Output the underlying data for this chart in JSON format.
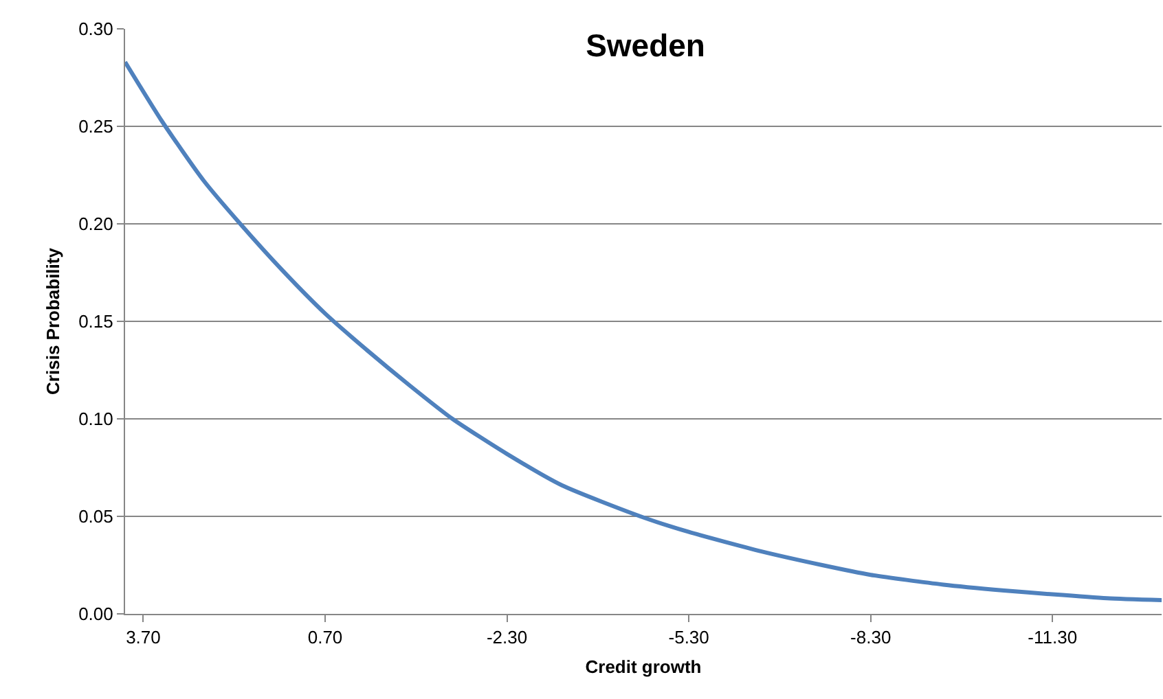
{
  "chart_data": {
    "type": "line",
    "title": "Sweden",
    "xlabel": "Credit growth",
    "ylabel": "Crisis Probability",
    "x": [
      4.0,
      3.4,
      2.7,
      2.1,
      1.4,
      0.7,
      0.0,
      -0.7,
      -1.4,
      -2.3,
      -3.2,
      -4.5,
      -5.3,
      -6.5,
      -7.5,
      -8.3,
      -9.5,
      -10.5,
      -11.3,
      -12.2,
      -13.1
    ],
    "series": [
      {
        "color": "#4f81bd",
        "values": [
          0.283,
          0.253,
          0.222,
          0.2,
          0.176,
          0.154,
          0.135,
          0.117,
          0.1,
          0.082,
          0.066,
          0.05,
          0.042,
          0.032,
          0.025,
          0.02,
          0.015,
          0.012,
          0.01,
          0.008,
          0.007
        ]
      }
    ],
    "xlim": [
      4.0,
      -13.1
    ],
    "xticks": [
      {
        "value": 3.7,
        "label": "3.70"
      },
      {
        "value": 0.7,
        "label": "0.70"
      },
      {
        "value": -2.3,
        "label": "-2.30"
      },
      {
        "value": -5.3,
        "label": "-5.30"
      },
      {
        "value": -8.3,
        "label": "-8.30"
      },
      {
        "value": -11.3,
        "label": "-11.30"
      }
    ],
    "ylim": [
      0,
      0.3
    ],
    "yticks": [
      {
        "value": 0,
        "label": "0.00"
      },
      {
        "value": 0.05,
        "label": "0.05"
      },
      {
        "value": 0.1,
        "label": "0.10"
      },
      {
        "value": 0.15,
        "label": "0.15"
      },
      {
        "value": 0.2,
        "label": "0.20"
      },
      {
        "value": 0.25,
        "label": "0.25"
      },
      {
        "value": 0.3,
        "label": "0.30"
      }
    ],
    "grid": "y",
    "legend": false,
    "marker": "none",
    "line_style": "solid"
  }
}
